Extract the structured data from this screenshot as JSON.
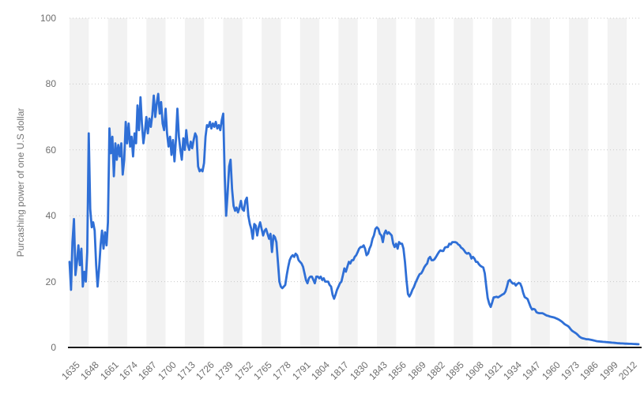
{
  "chart_data": {
    "type": "line",
    "title": "",
    "xlabel": "",
    "ylabel": "Purcashing power of one U.S dollar",
    "legend": "none",
    "grid": "horizontal-dotted",
    "background_bands": "alternating 13-year vertical bands starting shaded at 1635",
    "ylim": [
      0,
      100
    ],
    "xlim": [
      1635,
      2020
    ],
    "y_ticks": [
      0,
      20,
      40,
      60,
      80,
      100
    ],
    "y_tick_labels": [
      "0",
      "20",
      "40",
      "60",
      "80",
      "100"
    ],
    "x_ticks": [
      1635,
      1648,
      1661,
      1674,
      1687,
      1700,
      1713,
      1726,
      1739,
      1752,
      1765,
      1778,
      1791,
      1804,
      1817,
      1830,
      1843,
      1856,
      1869,
      1882,
      1895,
      1908,
      1921,
      1934,
      1947,
      1960,
      1973,
      1986,
      1999,
      2012
    ],
    "x_tick_labels": [
      "1635",
      "1648",
      "1661",
      "1674",
      "1687",
      "1700",
      "1713",
      "1726",
      "1739",
      "1752",
      "1765",
      "1778",
      "1791",
      "1804",
      "1817",
      "1830",
      "1843",
      "1856",
      "1869",
      "1882",
      "1895",
      "1908",
      "1921",
      "1934",
      "1947",
      "1960",
      "1973",
      "1986",
      "1999",
      "2012"
    ],
    "colors": {
      "line": "#2f6fd6",
      "band": "#f2f2f2",
      "grid": "#c9c9c9",
      "axis": "#1a1a1a",
      "labels": "#6e6e6e"
    },
    "series": [
      {
        "name": "Purchasing power of one US dollar",
        "start_year": 1635,
        "end_year": 2020,
        "values": [
          26,
          17.5,
          32,
          39,
          22,
          26,
          31,
          25,
          30,
          18.5,
          23,
          20,
          29,
          65,
          42,
          36.5,
          38,
          35.5,
          25,
          18.5,
          24,
          31,
          35.5,
          30,
          35,
          31,
          38,
          66.5,
          59,
          64,
          52,
          62,
          57,
          61.5,
          58,
          62,
          52.5,
          57,
          68.5,
          62,
          68,
          61,
          64,
          58,
          65,
          62,
          73.5,
          66,
          76,
          68,
          62,
          65.5,
          70,
          65,
          69.5,
          67,
          70.5,
          76.5,
          70,
          74,
          77,
          71,
          74.5,
          68,
          66,
          72.5,
          65,
          61,
          64,
          58.5,
          63,
          56.5,
          63,
          72.5,
          64,
          60,
          57,
          63.5,
          60,
          66,
          61.5,
          60,
          62.5,
          60.5,
          63,
          65,
          64,
          55,
          53.5,
          54,
          53.5,
          56,
          64,
          67.5,
          67,
          68.5,
          66.5,
          68,
          67,
          68.5,
          66.5,
          67.5,
          66,
          69,
          71,
          52,
          40,
          47,
          55,
          57,
          48,
          43,
          41.5,
          42.5,
          41,
          42.5,
          44.5,
          42,
          41.5,
          44.5,
          45.5,
          40,
          37.5,
          36,
          33,
          37.5,
          37,
          34,
          36.5,
          38,
          36,
          34,
          35.5,
          36,
          34.5,
          33,
          34.5,
          29,
          34,
          33.5,
          32,
          26,
          20,
          18.5,
          18,
          18.5,
          19,
          22,
          24.5,
          26.5,
          27.5,
          28,
          27.5,
          28.5,
          28,
          26.5,
          26,
          25.5,
          24.5,
          22.5,
          20.5,
          19.5,
          21,
          21.5,
          21.5,
          20.5,
          19.5,
          21.5,
          21.5,
          21,
          21.5,
          20.5,
          21,
          20,
          20,
          20,
          19,
          18.5,
          16,
          14.8,
          16,
          17.5,
          18.5,
          19.5,
          20,
          22,
          24,
          23,
          24.5,
          26,
          25.5,
          26.5,
          26.5,
          27.5,
          28,
          29,
          30,
          30.5,
          30.5,
          31,
          30,
          28,
          28.5,
          30,
          31,
          33,
          34,
          36,
          36.5,
          36,
          34.5,
          34,
          32,
          34.5,
          35.5,
          34.5,
          35,
          34.5,
          34,
          31.5,
          30.5,
          31.5,
          30,
          32,
          31.5,
          31.5,
          30,
          26,
          20.5,
          16.2,
          15.5,
          16.3,
          17.5,
          18.3,
          19.5,
          20.5,
          21.5,
          22.3,
          22.5,
          23.3,
          24.3,
          25,
          25.5,
          27,
          27.5,
          26.5,
          26.5,
          26.8,
          27.5,
          28.3,
          29,
          29.5,
          29.3,
          29.3,
          30.3,
          30.5,
          30.5,
          31.5,
          31.3,
          32,
          32,
          32,
          31.8,
          31.3,
          31,
          30.3,
          30,
          29.5,
          28.8,
          28.5,
          28.7,
          28.3,
          27,
          27.5,
          27,
          26,
          26,
          25.3,
          24.8,
          24.5,
          24.3,
          22.5,
          18.5,
          15,
          13.3,
          12.3,
          13.7,
          15.2,
          15.3,
          15.4,
          15.2,
          15.5,
          15.8,
          16.1,
          16.3,
          17,
          18.5,
          20.2,
          20.5,
          19.8,
          19.4,
          19.5,
          18.8,
          19.3,
          19.6,
          19.4,
          18.3,
          16.6,
          15.3,
          15,
          14.7,
          13.5,
          12.3,
          11.5,
          11.7,
          11.5,
          10.7,
          10.5,
          10.4,
          10.4,
          10.4,
          10.2,
          9.9,
          9.7,
          9.6,
          9.4,
          9.3,
          9.2,
          9.1,
          8.9,
          8.7,
          8.5,
          8.2,
          7.9,
          7.5,
          7.1,
          6.8,
          6.6,
          6.2,
          5.6,
          5.1,
          4.8,
          4.5,
          4.2,
          3.8,
          3.3,
          3.0,
          2.8,
          2.7,
          2.6,
          2.5,
          2.5,
          2.4,
          2.3,
          2.2,
          2.1,
          2.0,
          1.9,
          1.85,
          1.8,
          1.75,
          1.7,
          1.67,
          1.64,
          1.6,
          1.55,
          1.5,
          1.47,
          1.44,
          1.4,
          1.35,
          1.3,
          1.27,
          1.22,
          1.23,
          1.2,
          1.16,
          1.14,
          1.12,
          1.1,
          1.1,
          1.08,
          1.05,
          1.02,
          1.0,
          0.98
        ]
      }
    ]
  }
}
